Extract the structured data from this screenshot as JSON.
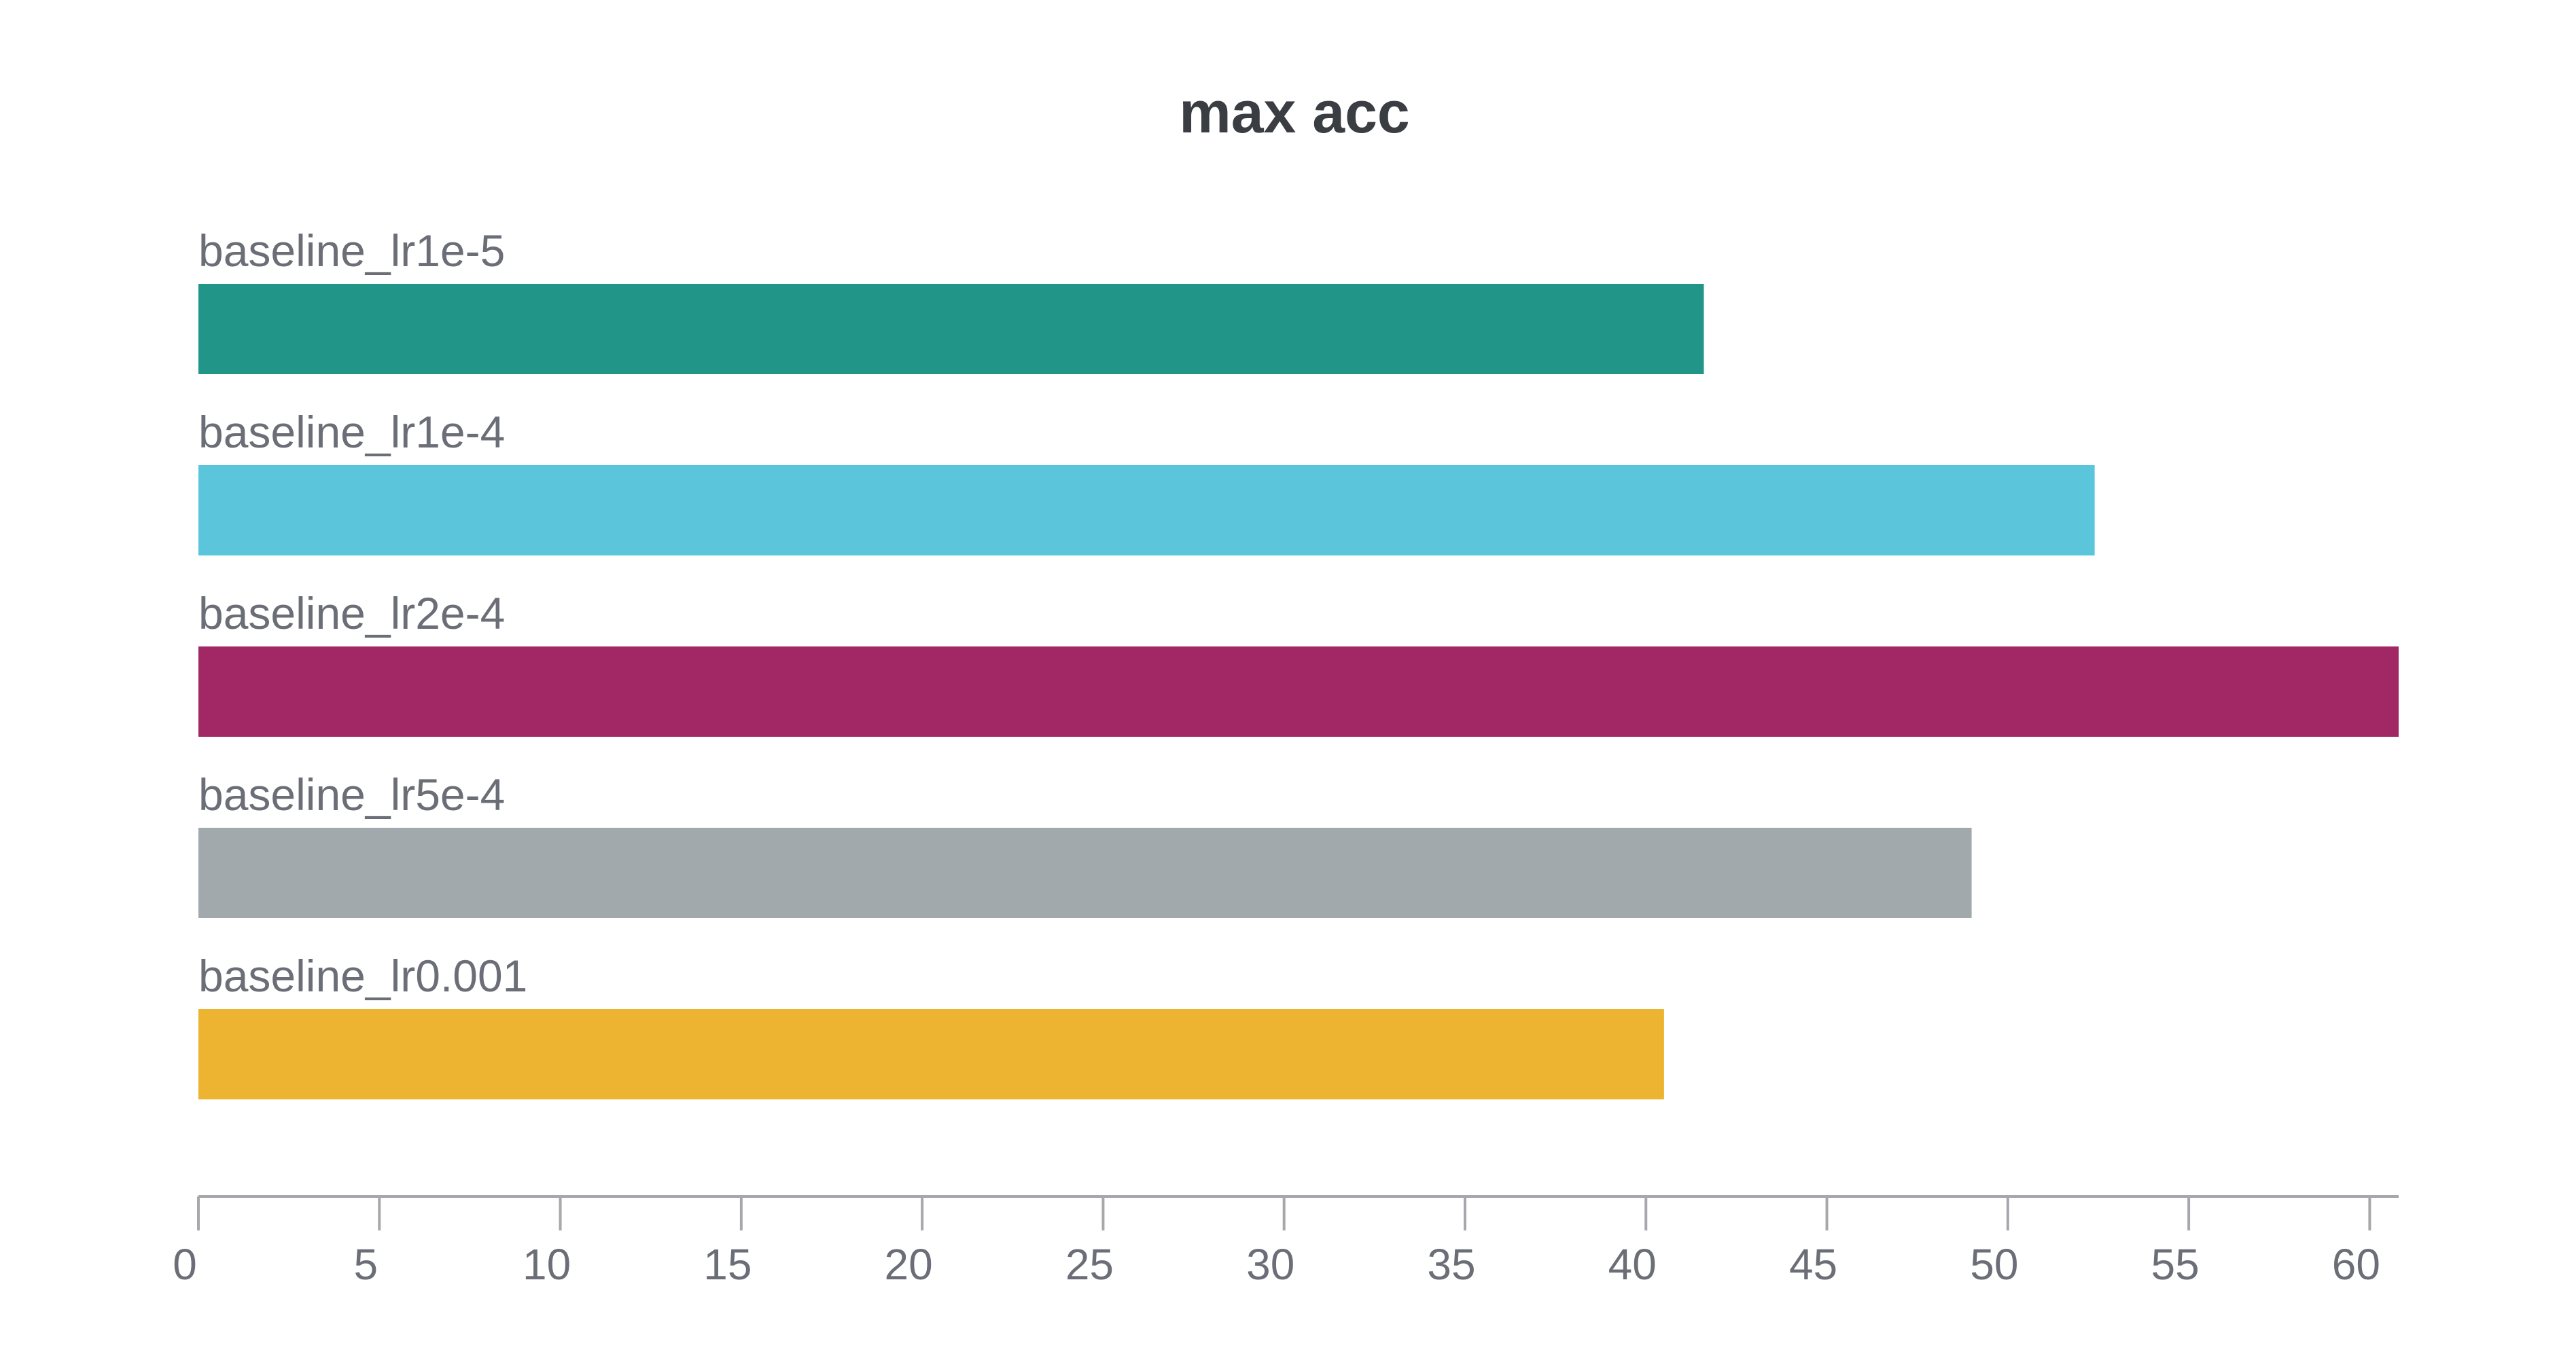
{
  "chart_data": {
    "type": "bar",
    "orientation": "horizontal",
    "title": "max acc",
    "xlabel": "",
    "ylabel": "",
    "xlim": [
      0,
      60.8
    ],
    "xticks": [
      0,
      5,
      10,
      15,
      20,
      25,
      30,
      35,
      40,
      45,
      50,
      55,
      60
    ],
    "grid": false,
    "legend": "none",
    "categories": [
      "baseline_lr1e-5",
      "baseline_lr1e-4",
      "baseline_lr2e-4",
      "baseline_lr5e-4",
      "baseline_lr0.001"
    ],
    "values": [
      41.6,
      52.4,
      60.8,
      49.0,
      40.5
    ],
    "colors": [
      "#229589",
      "#5bc5db",
      "#a12864",
      "#a1a9ad",
      "#ecb430"
    ]
  }
}
